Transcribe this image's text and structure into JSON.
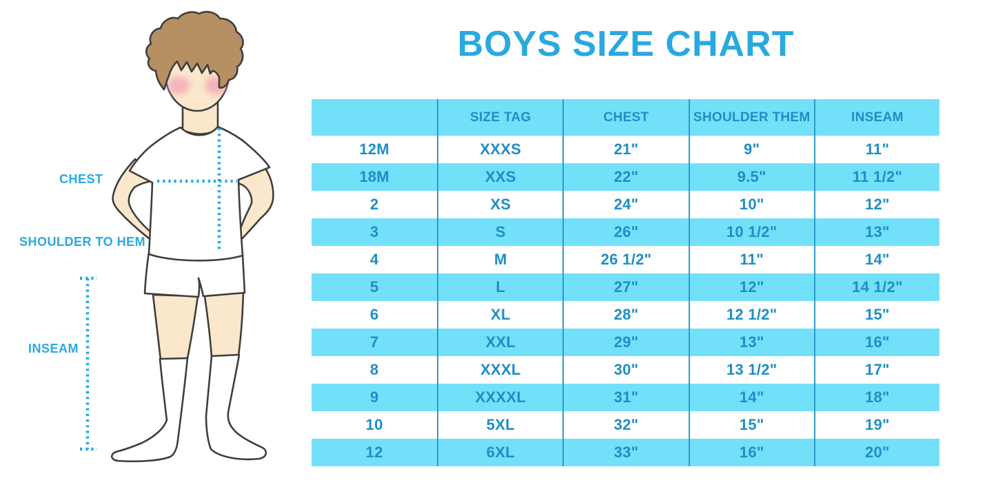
{
  "title": "BOYS SIZE CHART",
  "figure": {
    "description": "boy-measurement-diagram",
    "labels": {
      "chest": "CHEST",
      "shoulder_to_hem": "SHOULDER TO HEM",
      "inseam": "INSEAM"
    }
  },
  "table": {
    "columns": [
      "",
      "SIZE TAG",
      "CHEST",
      "SHOULDER THEM",
      "INSEAM"
    ],
    "rows": [
      [
        "12M",
        "XXXS",
        "21\"",
        "9\"",
        "11\""
      ],
      [
        "18M",
        "XXS",
        "22\"",
        "9.5\"",
        "11 1/2\""
      ],
      [
        "2",
        "XS",
        "24\"",
        "10\"",
        "12\""
      ],
      [
        "3",
        "S",
        "26\"",
        "10 1/2\"",
        "13\""
      ],
      [
        "4",
        "M",
        "26 1/2\"",
        "11\"",
        "14\""
      ],
      [
        "5",
        "L",
        "27\"",
        "12\"",
        "14 1/2\""
      ],
      [
        "6",
        "XL",
        "28\"",
        "12 1/2\"",
        "15\""
      ],
      [
        "7",
        "XXL",
        "29\"",
        "13\"",
        "16\""
      ],
      [
        "8",
        "XXXL",
        "30\"",
        "13 1/2\"",
        "17\""
      ],
      [
        "9",
        "XXXXL",
        "31\"",
        "14\"",
        "18\""
      ],
      [
        "10",
        "5XL",
        "32\"",
        "15\"",
        "19\""
      ],
      [
        "12",
        "6XL",
        "33\"",
        "16\"",
        "20\""
      ]
    ]
  },
  "colors": {
    "accent": "#29A9E0",
    "row_band": "#73E0FA",
    "table_text": "#1E8EC6",
    "column_divider": "#2D9BC9",
    "skin": "#FBE7CB",
    "hair": "#B68F63",
    "blush": "#F2A7B8",
    "outline": "#3E3E3E"
  }
}
